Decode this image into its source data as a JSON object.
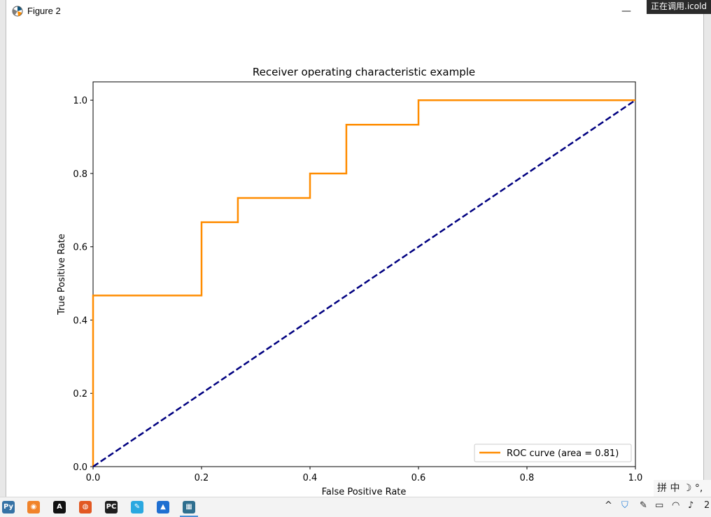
{
  "window": {
    "title": "Figure 2",
    "minimize_glyph": "—",
    "maximize_glyph": "☐",
    "close_glyph": "✕"
  },
  "overlay_tip": "正在调用.icold",
  "chart_data": {
    "type": "line",
    "title": "Receiver operating characteristic example",
    "xlabel": "False Positive Rate",
    "ylabel": "True Positive Rate",
    "xlim": [
      0.0,
      1.0
    ],
    "ylim": [
      0.0,
      1.05
    ],
    "xticks": [
      0.0,
      0.2,
      0.4,
      0.6,
      0.8,
      1.0
    ],
    "yticks": [
      0.0,
      0.2,
      0.4,
      0.6,
      0.8,
      1.0
    ],
    "xtick_labels": [
      "0.0",
      "0.2",
      "0.4",
      "0.6",
      "0.8",
      "1.0"
    ],
    "ytick_labels": [
      "0.0",
      "0.2",
      "0.4",
      "0.6",
      "0.8",
      "1.0"
    ],
    "grid": false,
    "legend_position": "lower right",
    "series": [
      {
        "name": "ROC curve (area = 0.81)",
        "color": "#ff8c00",
        "style": "solid",
        "x": [
          0.0,
          0.0,
          0.2,
          0.2,
          0.267,
          0.267,
          0.4,
          0.4,
          0.467,
          0.467,
          0.6,
          0.6,
          1.0
        ],
        "y": [
          0.0,
          0.467,
          0.467,
          0.667,
          0.667,
          0.733,
          0.733,
          0.8,
          0.8,
          0.933,
          0.933,
          1.0,
          1.0
        ]
      },
      {
        "color": "#000080",
        "style": "dashed",
        "x": [
          0.0,
          1.0
        ],
        "y": [
          0.0,
          1.0
        ]
      }
    ]
  },
  "taskbar": {
    "apps": [
      {
        "name": "python-launcher",
        "glyph": "Py",
        "color": "#3572a5"
      },
      {
        "name": "app-orange",
        "glyph": "◉",
        "color": "#f0832a"
      },
      {
        "name": "app-a",
        "glyph": "A",
        "color": "#111111"
      },
      {
        "name": "firefox",
        "glyph": "◍",
        "color": "#e25822"
      },
      {
        "name": "pycharm",
        "glyph": "PC",
        "color": "#1e1e1e"
      },
      {
        "name": "app-feather",
        "glyph": "✎",
        "color": "#2aa8e0"
      },
      {
        "name": "app-chart",
        "glyph": "▲",
        "color": "#1f6fd1"
      },
      {
        "name": "python-figure",
        "glyph": "▦",
        "color": "#2f6f8f"
      }
    ],
    "tray_chevron": "^",
    "ime_text": "拼 中 ☽ °,",
    "clock": "2"
  }
}
